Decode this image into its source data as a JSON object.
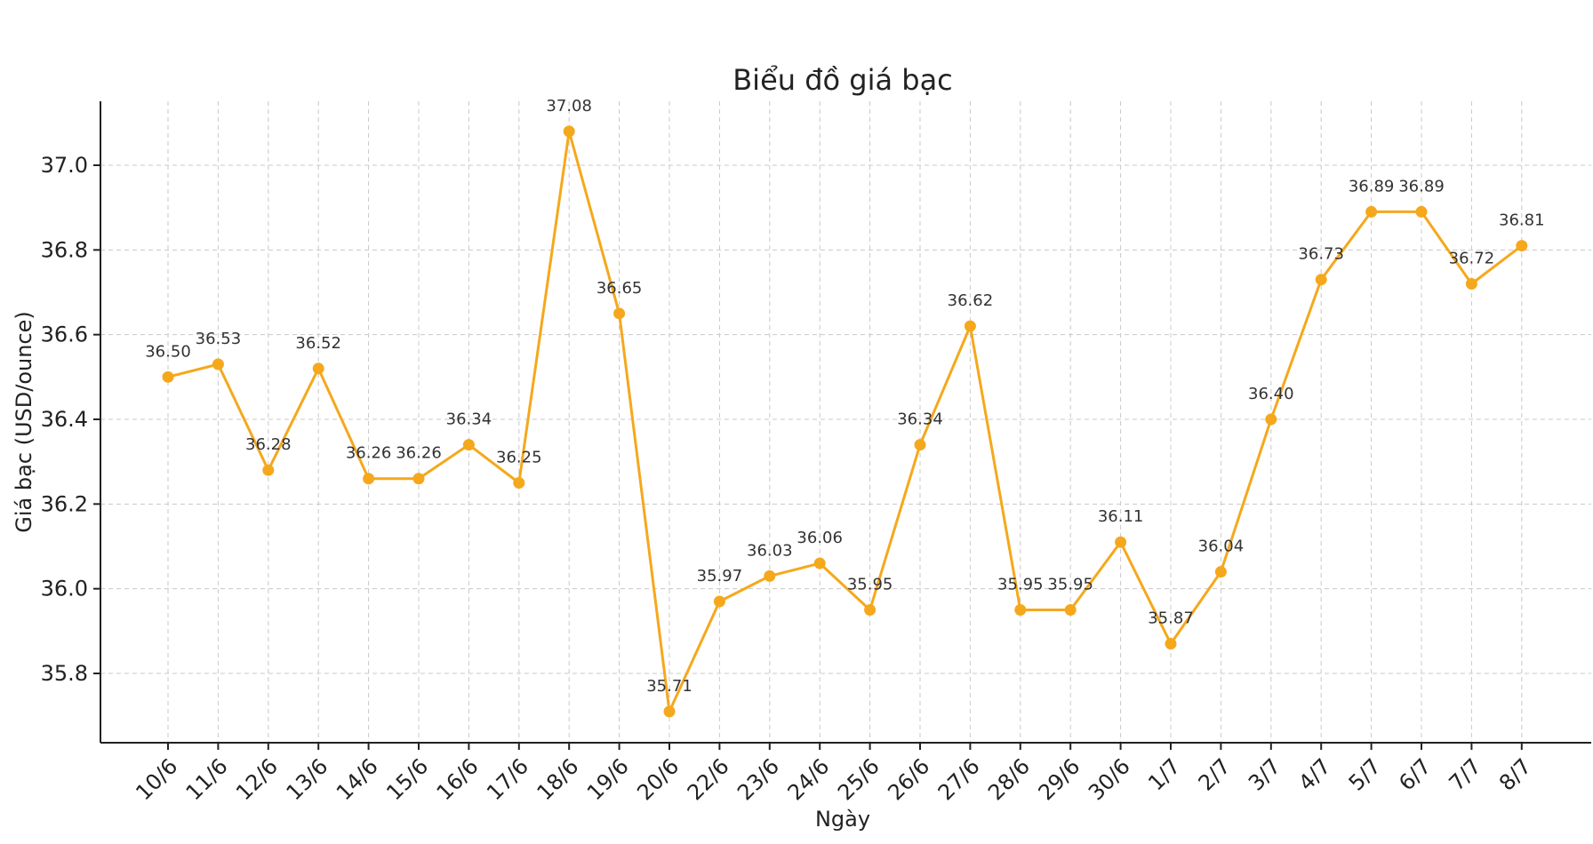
{
  "chart_data": {
    "type": "line",
    "title": "Biểu đồ giá bạc",
    "xlabel": "Ngày",
    "ylabel": "Giá bạc (USD/ounce)",
    "categories": [
      "10/6",
      "11/6",
      "12/6",
      "13/6",
      "14/6",
      "15/6",
      "16/6",
      "17/6",
      "18/6",
      "19/6",
      "20/6",
      "22/6",
      "23/6",
      "24/6",
      "25/6",
      "26/6",
      "27/6",
      "28/6",
      "29/6",
      "30/6",
      "1/7",
      "2/7",
      "3/7",
      "4/7",
      "5/7",
      "6/7",
      "7/7",
      "8/7"
    ],
    "series": [
      {
        "values": [
          36.5,
          36.53,
          36.28,
          36.52,
          36.26,
          36.26,
          36.34,
          36.25,
          37.08,
          36.65,
          35.71,
          35.97,
          36.03,
          36.06,
          35.95,
          36.34,
          36.62,
          35.95,
          35.95,
          36.11,
          35.87,
          36.04,
          36.4,
          36.73,
          36.89,
          36.89,
          36.72,
          36.81
        ],
        "labels": [
          "36.50",
          "36.53",
          "36.28",
          "36.52",
          "36.26",
          "36.26",
          "36.34",
          "36.25",
          "37.08",
          "36.65",
          "35.71",
          "35.97",
          "36.03",
          "36.06",
          "35.95",
          "36.34",
          "36.62",
          "35.95",
          "35.95",
          "36.11",
          "35.87",
          "36.04",
          "36.40",
          "36.73",
          "36.89",
          "36.89",
          "36.72",
          "36.81"
        ],
        "color": "#f5a81c"
      }
    ],
    "yticks": [
      "35.8",
      "36.0",
      "36.2",
      "36.4",
      "36.6",
      "36.8",
      "37.0"
    ],
    "ylim": [
      35.64,
      37.15
    ],
    "grid": true,
    "gridStyle": "dashed"
  }
}
